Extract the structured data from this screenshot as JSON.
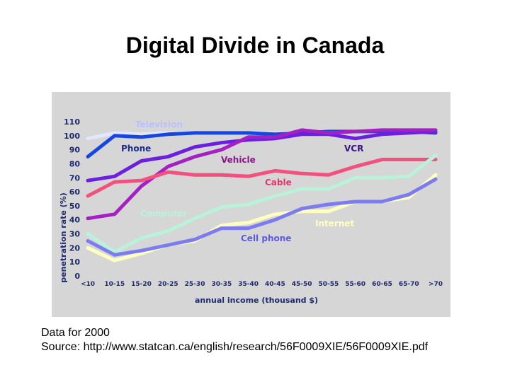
{
  "slide": {
    "title": "Digital Divide in Canada",
    "caption_line1": "Data for 2000",
    "caption_line2": "Source:  http://www.statcan.ca/english/research/56F0009XIE/56F0009XIE.pdf"
  },
  "chart_data": {
    "type": "line",
    "xlabel": "annual income (thousand $)",
    "ylabel": "penetration rate (%)",
    "ylim": [
      0,
      110
    ],
    "yticks": [
      0,
      10,
      20,
      30,
      40,
      50,
      60,
      70,
      80,
      90,
      100,
      110
    ],
    "grid": false,
    "categories": [
      "<10",
      "10-15",
      "15-20",
      "20-25",
      "25-30",
      "30-35",
      "35-40",
      "40-45",
      "45-50",
      "50-55",
      "55-60",
      "60-65",
      "65-70",
      ">70"
    ],
    "background_color": "#d6d6d6",
    "label_color": "#1e2a6e",
    "series": [
      {
        "name": "Television",
        "color": "#e3e6ff",
        "label_color": "#b9bfff",
        "values": [
          98,
          102,
          101,
          102,
          102,
          102,
          102,
          102,
          102,
          103,
          103,
          103,
          103,
          103
        ]
      },
      {
        "name": "Phone",
        "color": "#1546e0",
        "label_color": "#1e2a8c",
        "values": [
          85,
          100,
          99,
          101,
          102,
          102,
          102,
          101,
          102,
          103,
          103,
          103,
          103,
          102
        ]
      },
      {
        "name": "VCR",
        "color": "#6b1fe0",
        "label_color": "#3b0f8c",
        "values": [
          68,
          71,
          82,
          85,
          92,
          95,
          97,
          98,
          101,
          101,
          98,
          101,
          102,
          103
        ]
      },
      {
        "name": "Vehicle",
        "color": "#a321c2",
        "label_color": "#8a1488",
        "values": [
          41,
          44,
          64,
          78,
          85,
          90,
          99,
          99,
          104,
          102,
          103,
          104,
          104,
          104
        ]
      },
      {
        "name": "Cable",
        "color": "#f2507f",
        "label_color": "#e8366a",
        "values": [
          57,
          67,
          68,
          74,
          72,
          72,
          71,
          75,
          73,
          72,
          78,
          83,
          83,
          83
        ]
      },
      {
        "name": "Computer",
        "color": "#b8f2da",
        "label_color": "#b8f2da",
        "values": [
          30,
          17,
          27,
          32,
          41,
          49,
          51,
          57,
          62,
          62,
          70,
          70,
          71,
          86
        ]
      },
      {
        "name": "Internet",
        "color": "#ffffc0",
        "label_color": "#ffffc0",
        "values": [
          20,
          11,
          16,
          22,
          25,
          36,
          38,
          44,
          46,
          46,
          53,
          53,
          56,
          72
        ]
      },
      {
        "name": "Cell phone",
        "color": "#7c7cf0",
        "label_color": "#5b5be0",
        "values": [
          25,
          15,
          18,
          22,
          26,
          34,
          34,
          40,
          48,
          51,
          53,
          53,
          58,
          69
        ]
      }
    ]
  }
}
